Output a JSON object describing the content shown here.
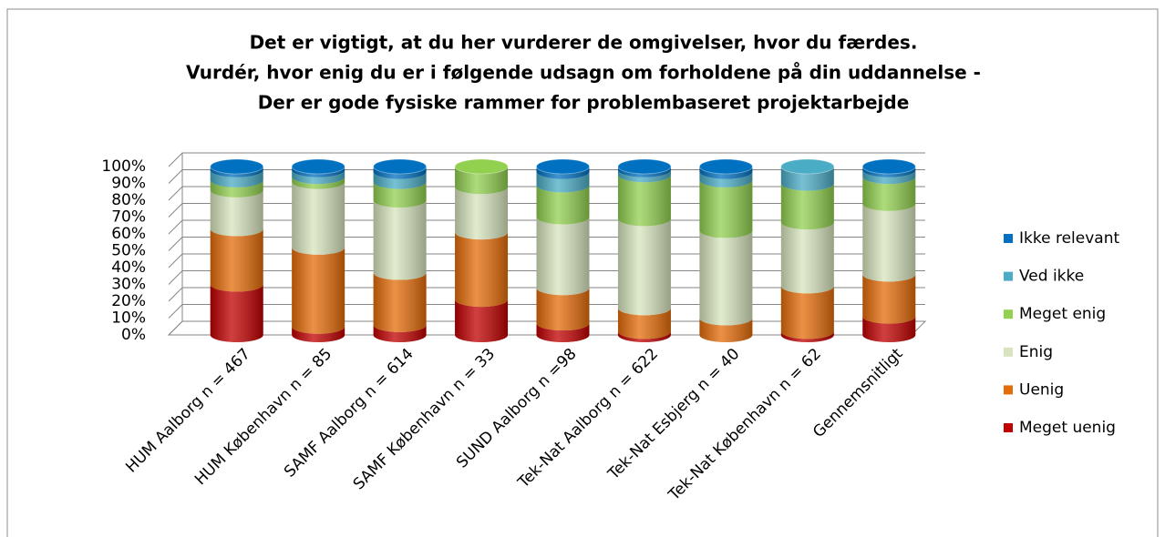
{
  "chart_data": {
    "type": "stacked_cylinder",
    "title": [
      "Det er vigtigt, at du her vurderer de omgivelser, hvor du færdes.",
      "Vurdér, hvor enig du er i følgende udsagn om forholdene på din uddannelse -",
      "Der er gode fysiske rammer for problembaseret projektarbejde"
    ],
    "categories": [
      "HUM Aalborg n = 467",
      "HUM København n = 85",
      "SAMF Aalborg n = 614",
      "SAMF København n = 33",
      "SUND Aalborg n =98",
      "Tek-Nat Aalborg n = 622",
      "Tek-Nat Esbjerg n = 40",
      "Tek-Nat København n = 62",
      "Gennemsnitligt"
    ],
    "series": [
      {
        "name": "Meget uenig",
        "color": "#c00000",
        "values": [
          30,
          5,
          6,
          21,
          7,
          2,
          0,
          2,
          11
        ]
      },
      {
        "name": "Uenig",
        "color": "#e46c0a",
        "values": [
          33,
          47,
          31,
          40,
          21,
          14,
          10,
          27,
          25
        ]
      },
      {
        "name": "Enig",
        "color": "#d7e4bd",
        "values": [
          23,
          39,
          43,
          27,
          42,
          53,
          52,
          38,
          42
        ]
      },
      {
        "name": "Meget enig",
        "color": "#92d050",
        "values": [
          6,
          3,
          11,
          12,
          19,
          26,
          30,
          23,
          16
        ]
      },
      {
        "name": "Ved ikke",
        "color": "#4bacc6",
        "values": [
          6,
          4,
          6,
          0,
          8,
          3,
          5,
          10,
          4
        ]
      },
      {
        "name": "Ikke relevant",
        "color": "#0070c0",
        "values": [
          2,
          2,
          3,
          0,
          3,
          2,
          3,
          0,
          2
        ]
      }
    ],
    "ylim": [
      0,
      100
    ],
    "yticks": [
      {
        "value": 0,
        "label": "0%"
      },
      {
        "value": 10,
        "label": "10%"
      },
      {
        "value": 20,
        "label": "20%"
      },
      {
        "value": 30,
        "label": "30%"
      },
      {
        "value": 40,
        "label": "40%"
      },
      {
        "value": 50,
        "label": "50%"
      },
      {
        "value": 60,
        "label": "60%"
      },
      {
        "value": 70,
        "label": "70%"
      },
      {
        "value": 80,
        "label": "80%"
      },
      {
        "value": 90,
        "label": "90%"
      },
      {
        "value": 100,
        "label": "100%"
      }
    ],
    "grid": true,
    "legend": "right"
  }
}
